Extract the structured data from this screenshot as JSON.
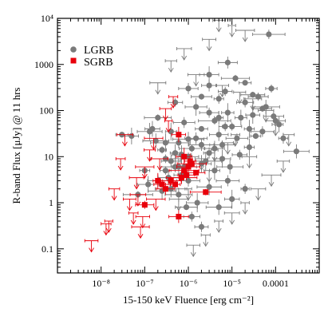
{
  "chart_data": {
    "type": "scatter",
    "xlabel": "15-150 keV Fluence [erg cm⁻²]",
    "ylabel": "R-band Flux [μJy] @ 11 hrs",
    "x_scale": "log",
    "y_scale": "log",
    "xlim": [
      1e-09,
      0.001
    ],
    "ylim": [
      0.03,
      10000
    ],
    "x_tick_labels": [
      "10⁻⁸",
      "10⁻⁷",
      "10⁻⁶",
      "10⁻⁵",
      "0.0001"
    ],
    "x_tick_values": [
      1e-08,
      1e-07,
      1e-06,
      1e-05,
      0.0001
    ],
    "y_tick_labels": [
      "0.1",
      "1",
      "10",
      "100",
      "1000",
      "10⁴"
    ],
    "y_tick_values": [
      0.1,
      1,
      10,
      100,
      1000,
      10000
    ],
    "grid": false,
    "legend_position": "top-left",
    "series": [
      {
        "name": "LGRB",
        "color": "#7a7a7a",
        "detections": [
          [
            2e-07,
            3
          ],
          [
            3e-07,
            5
          ],
          [
            4e-07,
            8
          ],
          [
            5e-07,
            12
          ],
          [
            6e-07,
            20
          ],
          [
            7e-07,
            4
          ],
          [
            8e-07,
            6
          ],
          [
            1e-06,
            10
          ],
          [
            1.2e-06,
            15
          ],
          [
            1.5e-06,
            25
          ],
          [
            2e-06,
            40
          ],
          [
            2.5e-06,
            8
          ],
          [
            3e-06,
            12
          ],
          [
            4e-06,
            60
          ],
          [
            5e-06,
            30
          ],
          [
            6e-06,
            18
          ],
          [
            8e-06,
            90
          ],
          [
            1e-05,
            45
          ],
          [
            1.3e-05,
            25
          ],
          [
            1.6e-05,
            70
          ],
          [
            2e-05,
            150
          ],
          [
            2.5e-05,
            40
          ],
          [
            3e-05,
            80
          ],
          [
            4e-05,
            200
          ],
          [
            5e-05,
            35
          ],
          [
            6e-05,
            120
          ],
          [
            8e-05,
            300
          ],
          [
            0.0001,
            60
          ],
          [
            0.00015,
            25
          ],
          [
            0.0003,
            13
          ],
          [
            7e-05,
            4500
          ],
          [
            8e-06,
            1100
          ],
          [
            3e-06,
            600
          ],
          [
            1e-06,
            300
          ],
          [
            5e-07,
            150
          ],
          [
            2e-07,
            70
          ],
          [
            1.5e-07,
            40
          ],
          [
            3e-07,
            20
          ],
          [
            4e-07,
            2
          ],
          [
            6e-07,
            1.5
          ],
          [
            9e-07,
            0.8
          ],
          [
            1.2e-06,
            0.5
          ],
          [
            2e-06,
            0.3
          ],
          [
            5e-06,
            0.8
          ],
          [
            1e-05,
            1.2
          ],
          [
            2e-05,
            2
          ],
          [
            8e-06,
            3
          ],
          [
            4e-06,
            5
          ],
          [
            2e-06,
            7
          ],
          [
            1e-06,
            3
          ],
          [
            6e-07,
            6
          ],
          [
            3e-07,
            9
          ],
          [
            2.5e-07,
            14
          ],
          [
            1.8e-07,
            22
          ],
          [
            1.3e-07,
            35
          ],
          [
            5e-08,
            28
          ],
          [
            3e-08,
            30
          ],
          [
            1e-07,
            5
          ],
          [
            1.2e-07,
            2.5
          ],
          [
            7e-08,
            1.5
          ],
          [
            2e-06,
            200
          ],
          [
            3e-06,
            350
          ],
          [
            5e-06,
            180
          ],
          [
            7e-06,
            260
          ],
          [
            1.2e-05,
            500
          ],
          [
            2e-05,
            400
          ],
          [
            3e-05,
            220
          ],
          [
            5e-05,
            110
          ],
          [
            9e-05,
            75
          ],
          [
            0.00012,
            50
          ],
          [
            4e-06,
            15
          ],
          [
            6e-06,
            9
          ],
          [
            9e-06,
            6
          ],
          [
            1.5e-05,
            11
          ],
          [
            2.5e-05,
            16
          ],
          [
            3.5e-05,
            28
          ],
          [
            7e-06,
            45
          ],
          [
            5e-06,
            70
          ],
          [
            3e-06,
            90
          ],
          [
            1.5e-06,
            120
          ],
          [
            8e-07,
            55
          ],
          [
            4e-07,
            35
          ],
          [
            2e-06,
            18
          ],
          [
            1e-06,
            24
          ],
          [
            7e-07,
            11
          ],
          [
            5e-07,
            6
          ],
          [
            3.5e-07,
            3.5
          ],
          [
            2.5e-07,
            1.8
          ],
          [
            1.6e-06,
            1
          ],
          [
            3e-06,
            2.2
          ]
        ],
        "upper_limits": [
          [
            5e-06,
            9000
          ],
          [
            1e-05,
            7000
          ],
          [
            2e-05,
            5500
          ],
          [
            3e-06,
            3500
          ],
          [
            8e-07,
            2200
          ],
          [
            4e-07,
            1200
          ],
          [
            2e-07,
            400
          ],
          [
            1.5e-06,
            600
          ],
          [
            6e-06,
            350
          ],
          [
            1.5e-05,
            250
          ],
          [
            3e-05,
            180
          ],
          [
            6e-05,
            100
          ],
          [
            0.0001,
            50
          ],
          [
            0.0002,
            30
          ],
          [
            0.00015,
            8
          ],
          [
            8e-05,
            4
          ],
          [
            4e-05,
            2
          ],
          [
            2e-05,
            1
          ],
          [
            1e-05,
            0.6
          ],
          [
            5e-06,
            0.4
          ],
          [
            2.5e-06,
            0.2
          ],
          [
            1.3e-06,
            0.12
          ],
          [
            3e-06,
            5
          ],
          [
            1e-06,
            2
          ],
          [
            6e-07,
            1.2
          ],
          [
            2e-06,
            9
          ],
          [
            4e-06,
            14
          ],
          [
            8e-06,
            20
          ],
          [
            1.2e-05,
            30
          ],
          [
            2.5e-05,
            10
          ]
        ]
      },
      {
        "name": "SGRB",
        "color": "#e8000b",
        "detections": [
          [
            6e-07,
            30
          ],
          [
            8e-07,
            10
          ],
          [
            1e-06,
            6
          ],
          [
            1.2e-06,
            7
          ],
          [
            9e-07,
            4
          ],
          [
            7e-07,
            3.5
          ],
          [
            5e-07,
            2.5
          ],
          [
            4e-07,
            3
          ],
          [
            3e-07,
            2
          ],
          [
            2.5e-07,
            2.5
          ],
          [
            2e-07,
            3
          ],
          [
            6e-07,
            0.5
          ],
          [
            2.5e-06,
            1.7
          ],
          [
            1e-07,
            0.9
          ],
          [
            1.5e-06,
            4.5
          ],
          [
            1.1e-06,
            8
          ],
          [
            8e-07,
            5
          ]
        ],
        "upper_limits": [
          [
            6e-09,
            0.15
          ],
          [
            1.3e-08,
            0.35
          ],
          [
            2e-08,
            2
          ],
          [
            2.8e-08,
            9
          ],
          [
            3.5e-08,
            30
          ],
          [
            4.5e-08,
            1.2
          ],
          [
            5.5e-08,
            0.6
          ],
          [
            6.5e-08,
            3.5
          ],
          [
            8e-08,
            0.3
          ],
          [
            1e-07,
            6
          ],
          [
            1.3e-07,
            14
          ],
          [
            1.6e-07,
            25
          ],
          [
            2.2e-07,
            9
          ],
          [
            3e-07,
            110
          ],
          [
            3.5e-07,
            60
          ],
          [
            4.5e-07,
            200
          ],
          [
            1.5e-08,
            0.4
          ],
          [
            7e-08,
            1.5
          ],
          [
            9e-08,
            0.5
          ],
          [
            1.8e-07,
            1.2
          ]
        ]
      }
    ]
  }
}
